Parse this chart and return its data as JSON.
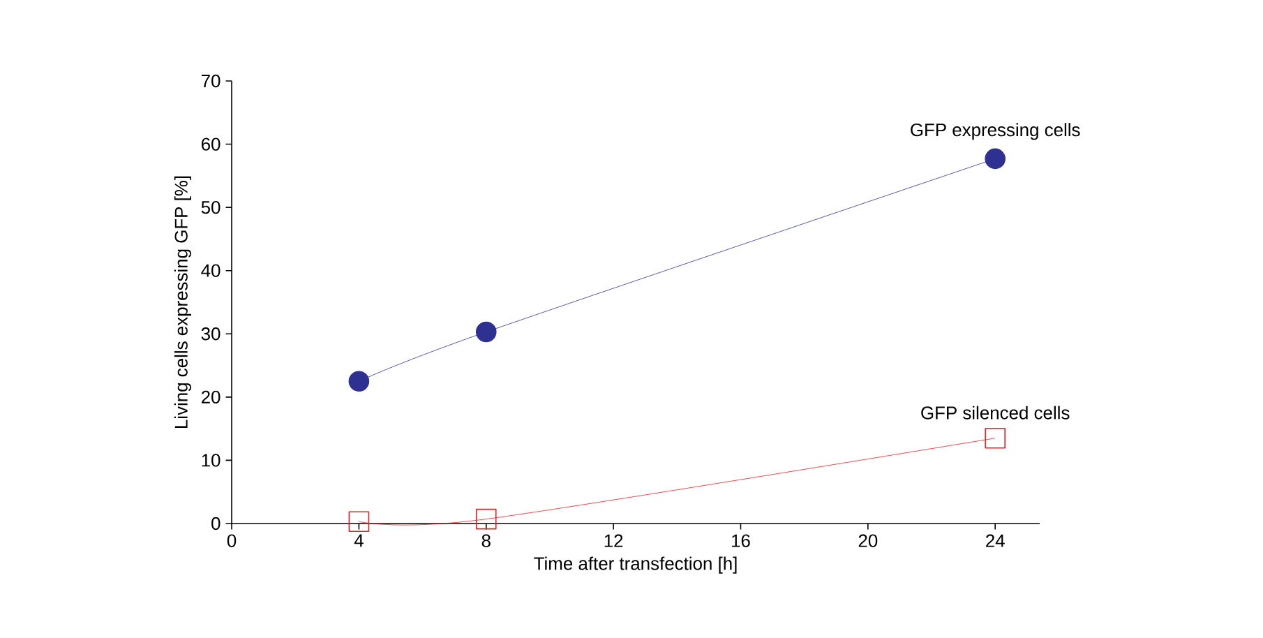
{
  "chart_data": {
    "type": "line",
    "xlabel": "Time after transfection [h]",
    "ylabel": "Living cells expressing GFP [%]",
    "xlim": [
      0,
      25.4
    ],
    "xticks": [
      0,
      4,
      8,
      12,
      16,
      20,
      24
    ],
    "ylim": [
      0,
      70
    ],
    "yticks": [
      0,
      10,
      20,
      30,
      40,
      50,
      60,
      70
    ],
    "grid": false,
    "legend": false,
    "series": [
      {
        "name": "GFP expressing cells",
        "color": "#2e3192",
        "marker": "circle",
        "x": [
          4,
          8,
          24
        ],
        "values": [
          22.5,
          30.3,
          57.7
        ]
      },
      {
        "name": "GFP silenced cells",
        "color": "#ed1c24",
        "marker": "square",
        "x": [
          4,
          8,
          24
        ],
        "values": [
          0.3,
          0.7,
          13.5
        ]
      }
    ]
  }
}
